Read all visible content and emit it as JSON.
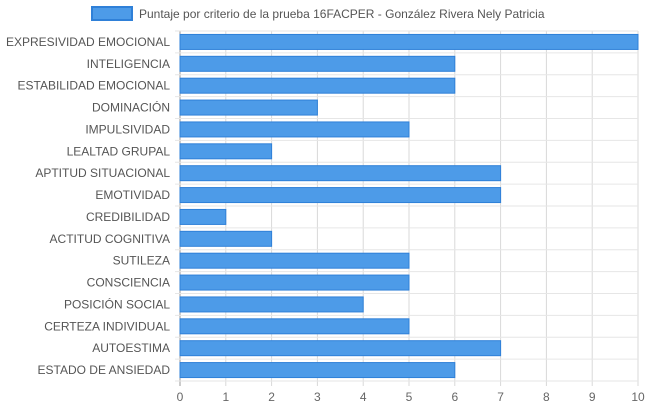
{
  "chart_data": {
    "type": "bar",
    "orientation": "horizontal",
    "categories": [
      "EXPRESIVIDAD EMOCIONAL",
      "INTELIGENCIA",
      "ESTABILIDAD EMOCIONAL",
      "DOMINACIÓN",
      "IMPULSIVIDAD",
      "LEALTAD GRUPAL",
      "APTITUD SITUACIONAL",
      "EMOTIVIDAD",
      "CREDIBILIDAD",
      "ACTITUD COGNITIVA",
      "SUTILEZA",
      "CONSCIENCIA",
      "POSICIÓN SOCIAL",
      "CERTEZA INDIVIDUAL",
      "AUTOESTIMA",
      "ESTADO DE ANSIEDAD"
    ],
    "series": [
      {
        "name": "Puntaje por criterio de la prueba 16FACPER - González Rivera Nely Patricia",
        "values": [
          10,
          6,
          6,
          3,
          5,
          2,
          7,
          7,
          1,
          2,
          5,
          5,
          4,
          5,
          7,
          6
        ],
        "color": "#4d9be8",
        "border_color": "#2f80d8"
      }
    ],
    "xlim": [
      0,
      10
    ],
    "x_ticks": [
      "0",
      "1",
      "2",
      "3",
      "4",
      "5",
      "6",
      "7",
      "8",
      "9",
      "10"
    ],
    "grid": true,
    "legend_position": "top-center",
    "title": "",
    "xlabel": "",
    "ylabel": ""
  }
}
